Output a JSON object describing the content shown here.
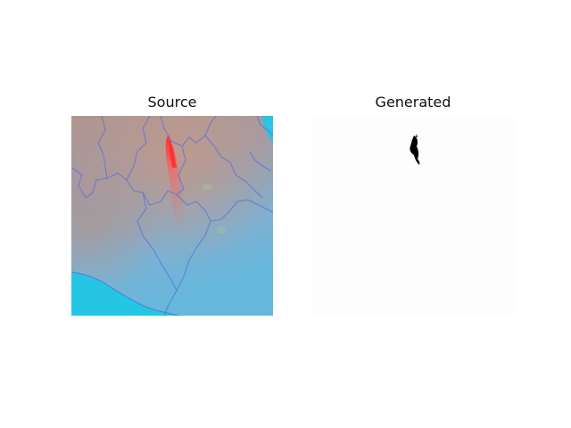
{
  "figure": {
    "left_title": "Source",
    "right_title": "Generated"
  },
  "colors": {
    "sea": "#25c6e4",
    "land_blue": "#6fb6da",
    "land_tan": "#b49a90",
    "border_line": "#5a6fd6",
    "plume_red": "#ff3b3b",
    "mask_black": "#000000",
    "mask_background": "#fdfdfd"
  }
}
